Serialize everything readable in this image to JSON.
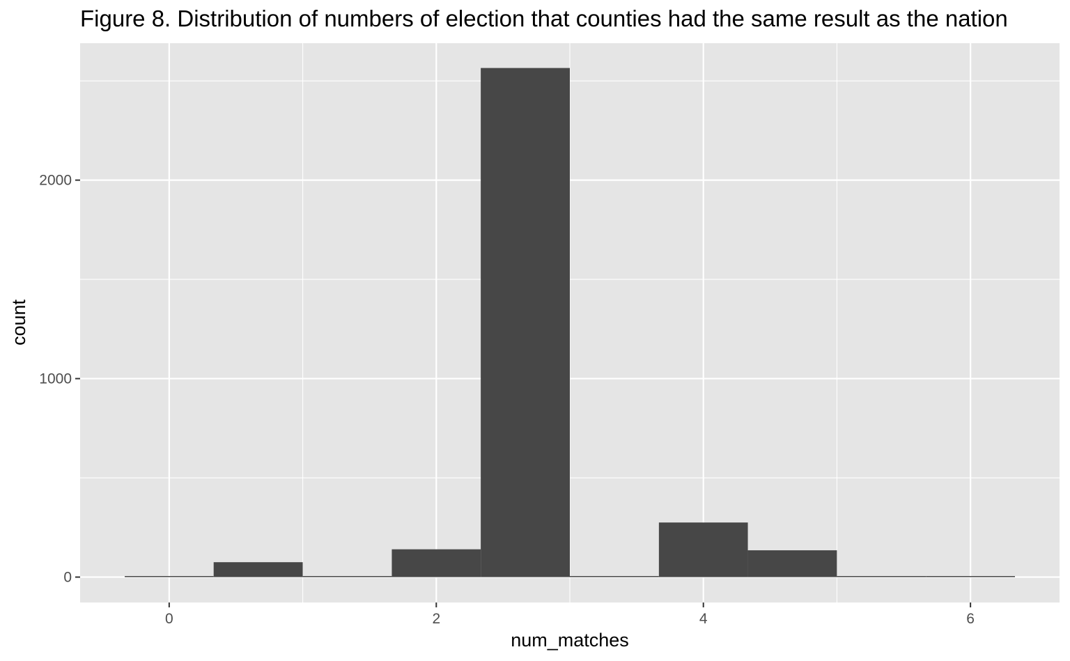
{
  "chart_data": {
    "type": "bar",
    "title": "Figure 8. Distribution of numbers of election that counties had the same result as the nation",
    "xlabel": "num_matches",
    "ylabel": "count",
    "bins": [
      {
        "x0": -0.333,
        "x1": 0.333,
        "count": 5
      },
      {
        "x0": 0.333,
        "x1": 1.0,
        "count": 75
      },
      {
        "x0": 1.0,
        "x1": 1.667,
        "count": 0
      },
      {
        "x0": 1.667,
        "x1": 2.333,
        "count": 140
      },
      {
        "x0": 2.333,
        "x1": 3.0,
        "count": 2565
      },
      {
        "x0": 3.0,
        "x1": 3.667,
        "count": 0
      },
      {
        "x0": 3.667,
        "x1": 4.333,
        "count": 275
      },
      {
        "x0": 4.333,
        "x1": 5.0,
        "count": 135
      },
      {
        "x0": 5.0,
        "x1": 5.667,
        "count": 0
      },
      {
        "x0": 5.667,
        "x1": 6.333,
        "count": 5
      }
    ],
    "x_ticks": [
      0,
      2,
      4,
      6
    ],
    "y_ticks": [
      0,
      1000,
      2000
    ],
    "xlim": [
      -0.667,
      6.667
    ],
    "ylim": [
      -128,
      2690
    ],
    "grid": true,
    "colors": {
      "panel": "#e5e5e5",
      "grid": "#ffffff",
      "bar": "#474747"
    }
  }
}
